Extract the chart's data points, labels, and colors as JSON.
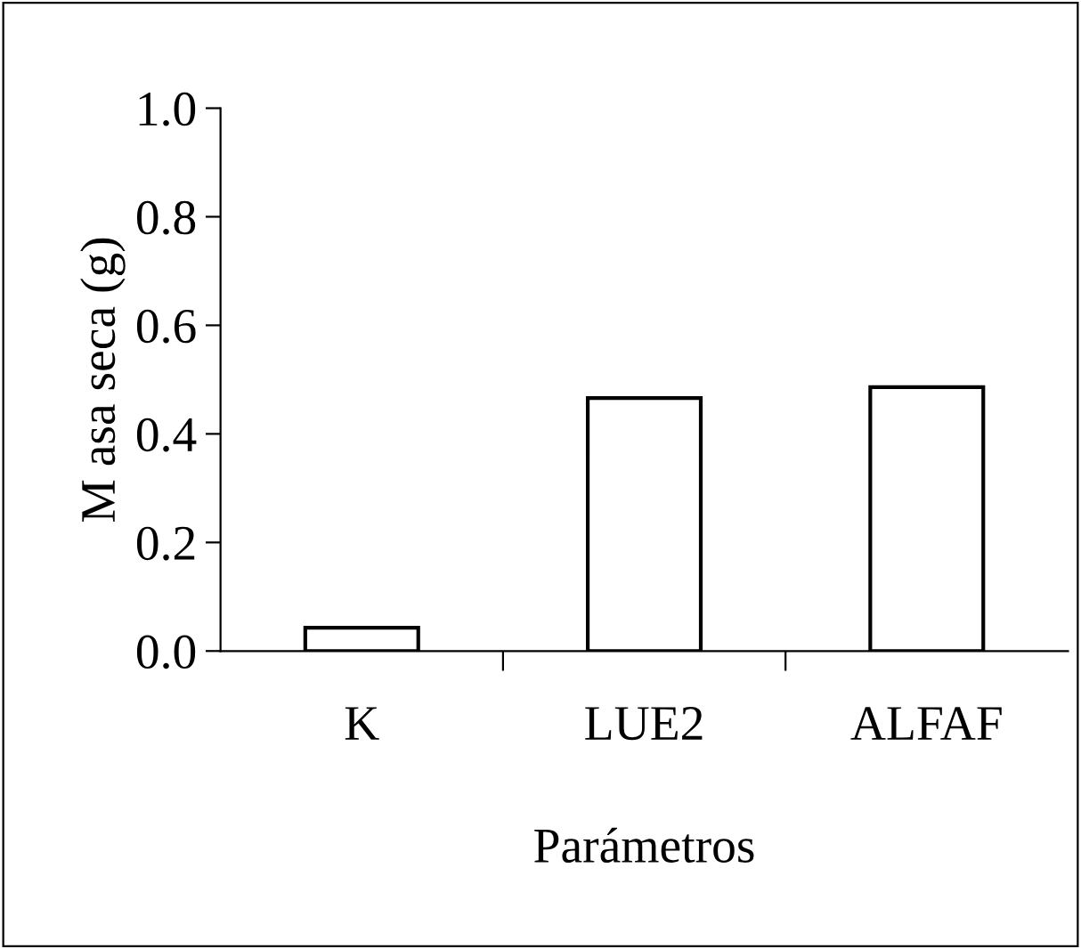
{
  "chart_data": {
    "type": "bar",
    "xlabel": "Parámetros",
    "ylabel": "M asa seca (g)",
    "categories": [
      "K",
      "LUE2",
      "ALFAF"
    ],
    "series": [
      {
        "color": "#ffffff",
        "values": [
          0.043,
          0.466,
          0.486
        ]
      }
    ],
    "ylim": [
      0,
      1.0
    ],
    "yticks": [
      {
        "value": 0,
        "label": "0.0"
      },
      {
        "value": 0.2,
        "label": "0.2"
      },
      {
        "value": 0.4,
        "label": "0.4"
      },
      {
        "value": 0.6,
        "label": "0.6"
      },
      {
        "value": 0.8,
        "label": "0.8"
      },
      {
        "value": 1.0,
        "label": "1.0"
      }
    ],
    "grid": false,
    "legend": false
  }
}
